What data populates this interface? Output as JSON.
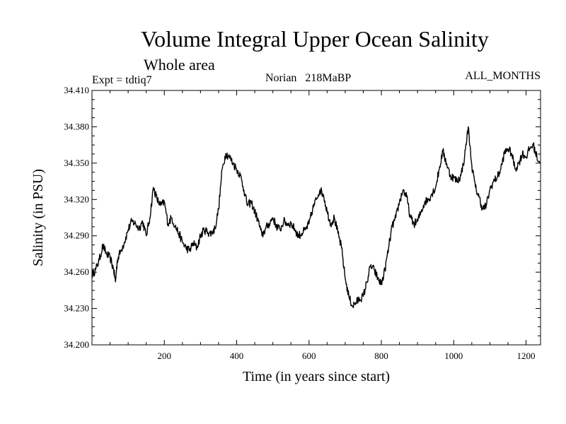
{
  "chart_data": {
    "type": "line",
    "title": "Volume Integral Upper Ocean Salinity",
    "subtitle": "Whole area",
    "experiment_label": "Expt = tdtiq7",
    "period_label": "Norian   218MaBP",
    "months_label": "ALL_MONTHS",
    "xlabel": "Time (in years since start)",
    "ylabel": "Salinity (in PSU)",
    "xlim": [
      0,
      1240
    ],
    "ylim": [
      34.2,
      34.41
    ],
    "x_ticks": [
      200,
      400,
      600,
      800,
      1000,
      1200
    ],
    "x_tick_labels": [
      "200",
      "400",
      "600",
      "800",
      "1000",
      "1200"
    ],
    "y_ticks": [
      34.2,
      34.23,
      34.26,
      34.29,
      34.32,
      34.35,
      34.38,
      34.41
    ],
    "y_tick_labels": [
      "34.200",
      "34.230",
      "34.260",
      "34.290",
      "34.320",
      "34.350",
      "34.380",
      "34.410"
    ],
    "series": [
      {
        "name": "Upper ocean salinity",
        "color": "#000000",
        "x": [
          0,
          10,
          20,
          30,
          40,
          50,
          60,
          65,
          70,
          80,
          90,
          100,
          110,
          120,
          130,
          140,
          150,
          160,
          170,
          180,
          190,
          200,
          210,
          220,
          230,
          240,
          250,
          260,
          270,
          280,
          290,
          300,
          310,
          320,
          330,
          340,
          350,
          360,
          370,
          380,
          390,
          400,
          410,
          420,
          430,
          440,
          450,
          460,
          470,
          480,
          490,
          500,
          510,
          520,
          530,
          540,
          550,
          560,
          570,
          580,
          590,
          600,
          610,
          620,
          630,
          640,
          650,
          660,
          670,
          680,
          690,
          700,
          710,
          720,
          730,
          740,
          750,
          760,
          770,
          780,
          790,
          800,
          810,
          820,
          830,
          840,
          850,
          860,
          870,
          880,
          890,
          900,
          910,
          920,
          930,
          940,
          950,
          960,
          970,
          980,
          990,
          1000,
          1010,
          1020,
          1030,
          1040,
          1050,
          1060,
          1070,
          1080,
          1090,
          1100,
          1110,
          1120,
          1130,
          1140,
          1150,
          1160,
          1170,
          1180,
          1190,
          1200,
          1210,
          1220,
          1230,
          1240
        ],
        "values": [
          34.258,
          34.262,
          34.27,
          34.282,
          34.275,
          34.272,
          34.262,
          34.252,
          34.27,
          34.278,
          34.285,
          34.295,
          34.302,
          34.3,
          34.296,
          34.302,
          34.29,
          34.305,
          34.33,
          34.32,
          34.315,
          34.318,
          34.3,
          34.305,
          34.298,
          34.292,
          34.285,
          34.28,
          34.278,
          34.284,
          34.28,
          34.29,
          34.295,
          34.293,
          34.292,
          34.296,
          34.312,
          34.345,
          34.358,
          34.355,
          34.35,
          34.345,
          34.34,
          34.328,
          34.315,
          34.318,
          34.31,
          34.302,
          34.29,
          34.296,
          34.3,
          34.305,
          34.298,
          34.295,
          34.302,
          34.3,
          34.3,
          34.296,
          34.29,
          34.292,
          34.295,
          34.3,
          34.312,
          34.32,
          34.328,
          34.324,
          34.31,
          34.3,
          34.305,
          34.292,
          34.28,
          34.255,
          34.24,
          34.232,
          34.235,
          34.238,
          34.24,
          34.252,
          34.265,
          34.262,
          34.255,
          34.25,
          34.262,
          34.28,
          34.298,
          34.305,
          34.318,
          34.328,
          34.322,
          34.305,
          34.3,
          34.302,
          34.31,
          34.318,
          34.32,
          34.325,
          34.33,
          34.345,
          34.36,
          34.35,
          34.34,
          34.338,
          34.335,
          34.34,
          34.355,
          34.38,
          34.348,
          34.33,
          34.322,
          34.312,
          34.315,
          34.328,
          34.335,
          34.338,
          34.345,
          34.358,
          34.362,
          34.358,
          34.345,
          34.35,
          34.358,
          34.355,
          34.362,
          34.365,
          34.355,
          34.35
        ]
      }
    ]
  }
}
